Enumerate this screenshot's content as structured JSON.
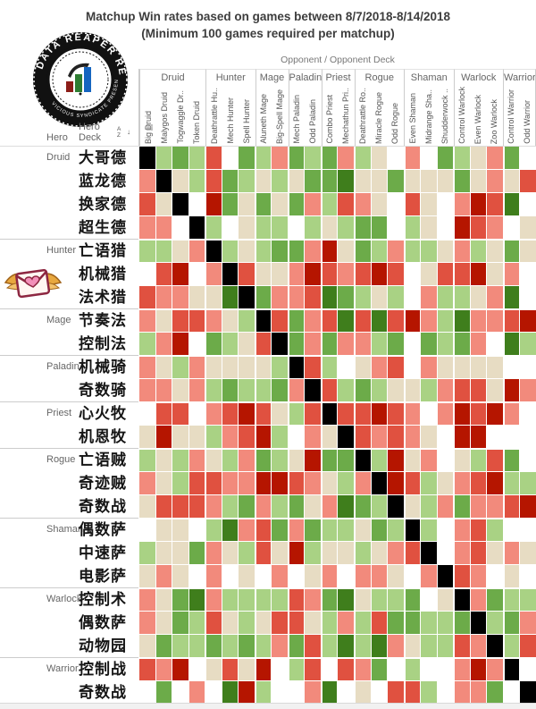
{
  "title": {
    "line1": "Matchup Win rates based on games between 8/7/2018-8/14/2018",
    "line2": "(Minimum 100 games required per matchup)"
  },
  "header": {
    "opponent": "Opponent  /  Opponent Deck"
  },
  "logo": {
    "arc_top": "DATA REAPER REPORT",
    "arc_bottom": "VICIOUS SYNDICATE PRESENTS"
  },
  "axis": {
    "hero": "Hero",
    "hero_deck_line1": "Hero",
    "hero_deck_line2": "Deck",
    "sort_a": "A",
    "sort_z": "Z",
    "sort_arrow": "↓",
    "field_icon_glyph": "▦"
  },
  "columns": {
    "groups": [
      {
        "name": "Druid",
        "decks": [
          "Big Druid",
          "Malygos Druid",
          "Togwaggle Dr..",
          "Token Druid"
        ]
      },
      {
        "name": "Hunter",
        "decks": [
          "Deathrattle Hu..",
          "Mech Hunter",
          "Spell Hunter"
        ]
      },
      {
        "name": "Mage",
        "decks": [
          "Aluneth Mage",
          "Big-Spell Mage"
        ]
      },
      {
        "name": "Paladin",
        "decks": [
          "Mech Paladin",
          "Odd Paladin"
        ]
      },
      {
        "name": "Priest",
        "decks": [
          "Combo Priest",
          "Mechathun Pri.."
        ]
      },
      {
        "name": "Rogue",
        "decks": [
          "Deathrattle Ro..",
          "Miracle Rogue",
          "Odd Rogue"
        ]
      },
      {
        "name": "Shaman",
        "decks": [
          "Even Shaman",
          "Midrange Sha..",
          "Shudderwock .."
        ]
      },
      {
        "name": "Warlock",
        "decks": [
          "Control Warlock",
          "Even Warlock",
          "Zoo Warlock"
        ]
      },
      {
        "name": "Warrior",
        "decks": [
          "Control Warrior",
          "Odd Warrior"
        ]
      }
    ]
  },
  "rows": {
    "groups": [
      {
        "name": "Druid",
        "decks": [
          "大哥德",
          "蓝龙德",
          "换家德",
          "超生德"
        ]
      },
      {
        "name": "Hunter",
        "decks": [
          "亡语猎",
          "机械猎",
          "法术猎"
        ]
      },
      {
        "name": "Mage",
        "decks": [
          "节奏法",
          "控制法"
        ]
      },
      {
        "name": "Paladin",
        "decks": [
          "机械骑",
          "奇数骑"
        ]
      },
      {
        "name": "Priest",
        "decks": [
          "心火牧",
          "机恩牧"
        ]
      },
      {
        "name": "Rogue",
        "decks": [
          "亡语贼",
          "奇迹贼",
          "奇数战"
        ]
      },
      {
        "name": "Shaman",
        "decks": [
          "偶数萨",
          "中速萨",
          "电影萨"
        ]
      },
      {
        "name": "Warlock",
        "decks": [
          "控制术",
          "偶数萨",
          "动物园"
        ]
      },
      {
        "name": "Warrior",
        "decks": [
          "控制战",
          "奇数战"
        ]
      }
    ]
  },
  "chart_data": {
    "type": "heatmap",
    "title": "Matchup Win rates based on games between 8/7/2018-8/14/2018 (Minimum 100 games required per matchup)",
    "x_axis_label": "Opponent / Opponent Deck",
    "y_axis_label": "Hero / Hero Deck",
    "x_labels": [
      "Big Druid",
      "Malygos Druid",
      "Togwaggle Dr..",
      "Token Druid",
      "Deathrattle Hu..",
      "Mech Hunter",
      "Spell Hunter",
      "Aluneth Mage",
      "Big-Spell Mage",
      "Mech Paladin",
      "Odd Paladin",
      "Combo Priest",
      "Mechathun Pri..",
      "Deathrattle Ro..",
      "Miracle Rogue",
      "Odd Rogue",
      "Even Shaman",
      "Midrange Sha..",
      "Shudderwock ..",
      "Control Warlock",
      "Even Warlock",
      "Zoo Warlock",
      "Control Warrior",
      "Odd Warrior"
    ],
    "y_labels": [
      "大哥德",
      "蓝龙德",
      "换家德",
      "超生德",
      "亡语猎",
      "机械猎",
      "法术猎",
      "节奏法",
      "控制法",
      "机械骑",
      "奇数骑",
      "心火牧",
      "机恩牧",
      "亡语贼",
      "奇迹贼",
      "奇数战",
      "偶数萨",
      "中速萨",
      "电影萨",
      "控制术",
      "偶数萨",
      "动物园",
      "控制战",
      "奇数战"
    ],
    "palette": {
      "K": "#000000",
      "W": "#ffffff",
      "B": "#e7dcc3",
      "LG": "#a9d284",
      "G": "#6cab49",
      "DG": "#3f7e1c",
      "LR": "#f28a7c",
      "R": "#e05140",
      "DR": "#b51500"
    },
    "palette_meaning": {
      "K": "mirror matchup (diagonal)",
      "W": "no data shown",
      "DG": "strongly favored",
      "G": "favored",
      "LG": "slightly favored",
      "B": "even",
      "LR": "slightly unfavored",
      "R": "unfavored",
      "DR": "strongly unfavored"
    },
    "matrix": [
      [
        "K",
        "LG",
        "G",
        "LG",
        "R",
        "W",
        "G",
        "LG",
        "LR",
        "G",
        "LG",
        "G",
        "LR",
        "LG",
        "B",
        "W",
        "LR",
        "W",
        "G",
        "LG",
        "B",
        "LR",
        "G",
        "W"
      ],
      [
        "LR",
        "K",
        "B",
        "LG",
        "R",
        "G",
        "LG",
        "B",
        "LG",
        "B",
        "G",
        "G",
        "DG",
        "B",
        "B",
        "G",
        "B",
        "B",
        "B",
        "G",
        "B",
        "LR",
        "B",
        "R"
      ],
      [
        "R",
        "B",
        "K",
        "W",
        "DR",
        "G",
        "B",
        "G",
        "B",
        "G",
        "LR",
        "LG",
        "R",
        "LR",
        "B",
        "W",
        "R",
        "B",
        "W",
        "LR",
        "DR",
        "R",
        "DG",
        "W"
      ],
      [
        "LR",
        "LR",
        "W",
        "K",
        "LG",
        "W",
        "B",
        "LG",
        "LG",
        "W",
        "LG",
        "B",
        "LG",
        "G",
        "G",
        "W",
        "LG",
        "B",
        "W",
        "DR",
        "R",
        "LR",
        "W",
        "B"
      ],
      [
        "LG",
        "LG",
        "B",
        "LR",
        "K",
        "LG",
        "B",
        "LG",
        "G",
        "G",
        "LR",
        "DR",
        "B",
        "G",
        "LG",
        "LR",
        "LG",
        "LG",
        "B",
        "LR",
        "LG",
        "B",
        "G",
        "B"
      ],
      [
        "W",
        "R",
        "DR",
        "W",
        "LR",
        "K",
        "R",
        "B",
        "B",
        "LR",
        "DR",
        "R",
        "LR",
        "R",
        "DR",
        "R",
        "W",
        "B",
        "R",
        "R",
        "DR",
        "B",
        "LR",
        "W"
      ],
      [
        "R",
        "LR",
        "LR",
        "B",
        "B",
        "DG",
        "K",
        "G",
        "LR",
        "LR",
        "R",
        "DG",
        "G",
        "LG",
        "B",
        "LG",
        "W",
        "LR",
        "LG",
        "LG",
        "B",
        "LR",
        "DG",
        "W"
      ],
      [
        "LR",
        "B",
        "R",
        "R",
        "LR",
        "B",
        "LG",
        "K",
        "R",
        "G",
        "LR",
        "R",
        "DG",
        "R",
        "DG",
        "R",
        "DR",
        "LR",
        "LG",
        "DG",
        "LR",
        "LR",
        "R",
        "DR"
      ],
      [
        "LG",
        "LR",
        "DR",
        "W",
        "G",
        "LG",
        "B",
        "R",
        "K",
        "G",
        "LR",
        "G",
        "LR",
        "LR",
        "LG",
        "G",
        "W",
        "G",
        "LG",
        "G",
        "LR",
        "W",
        "DG",
        "LG"
      ],
      [
        "LR",
        "B",
        "LG",
        "LR",
        "B",
        "B",
        "B",
        "B",
        "LG",
        "K",
        "R",
        "LG",
        "W",
        "B",
        "LR",
        "R",
        "W",
        "LR",
        "B",
        "B",
        "B",
        "B",
        "W",
        "W"
      ],
      [
        "LR",
        "LR",
        "B",
        "LR",
        "LG",
        "G",
        "LG",
        "LG",
        "G",
        "LR",
        "K",
        "R",
        "LG",
        "G",
        "LG",
        "B",
        "B",
        "LG",
        "LR",
        "R",
        "R",
        "B",
        "DR",
        "LR"
      ],
      [
        "W",
        "R",
        "R",
        "W",
        "LR",
        "R",
        "DR",
        "R",
        "B",
        "LG",
        "R",
        "K",
        "R",
        "R",
        "DR",
        "R",
        "LR",
        "W",
        "LR",
        "DR",
        "R",
        "DR",
        "LR",
        "W"
      ],
      [
        "B",
        "DR",
        "B",
        "B",
        "LG",
        "LR",
        "R",
        "DR",
        "LG",
        "W",
        "LR",
        "B",
        "K",
        "R",
        "LR",
        "R",
        "LR",
        "B",
        "W",
        "DR",
        "DR",
        "W",
        "W",
        "W"
      ],
      [
        "LG",
        "B",
        "LG",
        "LR",
        "B",
        "LG",
        "LR",
        "G",
        "LG",
        "B",
        "DR",
        "G",
        "G",
        "K",
        "LG",
        "DR",
        "B",
        "LR",
        "W",
        "B",
        "LG",
        "R",
        "G",
        "W"
      ],
      [
        "LR",
        "B",
        "LG",
        "R",
        "R",
        "LR",
        "LR",
        "DR",
        "DR",
        "R",
        "LR",
        "B",
        "LG",
        "LR",
        "K",
        "DR",
        "R",
        "LG",
        "B",
        "LR",
        "R",
        "DR",
        "LG",
        "LG"
      ],
      [
        "B",
        "R",
        "R",
        "R",
        "LR",
        "LG",
        "G",
        "LR",
        "LG",
        "G",
        "B",
        "LR",
        "DG",
        "G",
        "LG",
        "K",
        "B",
        "LG",
        "LR",
        "G",
        "LR",
        "LR",
        "R",
        "DR"
      ],
      [
        "W",
        "B",
        "B",
        "W",
        "LG",
        "DG",
        "LR",
        "R",
        "G",
        "LR",
        "G",
        "LG",
        "LG",
        "B",
        "G",
        "LG",
        "K",
        "LG",
        "W",
        "LR",
        "R",
        "LG",
        "W",
        "W"
      ],
      [
        "LG",
        "B",
        "B",
        "G",
        "LR",
        "B",
        "LG",
        "R",
        "B",
        "DR",
        "LG",
        "B",
        "B",
        "LG",
        "B",
        "LR",
        "R",
        "K",
        "W",
        "LR",
        "R",
        "B",
        "LR",
        "B"
      ],
      [
        "B",
        "LR",
        "B",
        "W",
        "LR",
        "W",
        "B",
        "W",
        "LR",
        "W",
        "B",
        "LR",
        "W",
        "LR",
        "LR",
        "B",
        "W",
        "LR",
        "K",
        "R",
        "LR",
        "W",
        "B",
        "W"
      ],
      [
        "LR",
        "B",
        "G",
        "DG",
        "LR",
        "LG",
        "LG",
        "LG",
        "LG",
        "R",
        "LR",
        "G",
        "DG",
        "B",
        "LG",
        "LG",
        "G",
        "W",
        "B",
        "K",
        "LR",
        "G",
        "LG",
        "LG"
      ],
      [
        "LR",
        "B",
        "G",
        "LG",
        "R",
        "B",
        "LG",
        "B",
        "R",
        "R",
        "B",
        "LG",
        "LR",
        "LG",
        "R",
        "G",
        "G",
        "LG",
        "LG",
        "G",
        "K",
        "LG",
        "G",
        "LR"
      ],
      [
        "B",
        "G",
        "LG",
        "LG",
        "G",
        "LG",
        "G",
        "LG",
        "LR",
        "G",
        "R",
        "LG",
        "DG",
        "LG",
        "DG",
        "LR",
        "B",
        "LG",
        "LG",
        "R",
        "LR",
        "K",
        "LG",
        "R"
      ],
      [
        "R",
        "LR",
        "DR",
        "W",
        "B",
        "R",
        "B",
        "DR",
        "W",
        "LG",
        "R",
        "W",
        "R",
        "LR",
        "G",
        "W",
        "LG",
        "W",
        "W",
        "LR",
        "DR",
        "LR",
        "K",
        "W"
      ],
      [
        "W",
        "G",
        "W",
        "LR",
        "W",
        "DG",
        "DR",
        "LG",
        "W",
        "W",
        "LR",
        "DG",
        "W",
        "B",
        "W",
        "R",
        "R",
        "LG",
        "W",
        "LR",
        "LR",
        "G",
        "W",
        "K"
      ]
    ]
  }
}
